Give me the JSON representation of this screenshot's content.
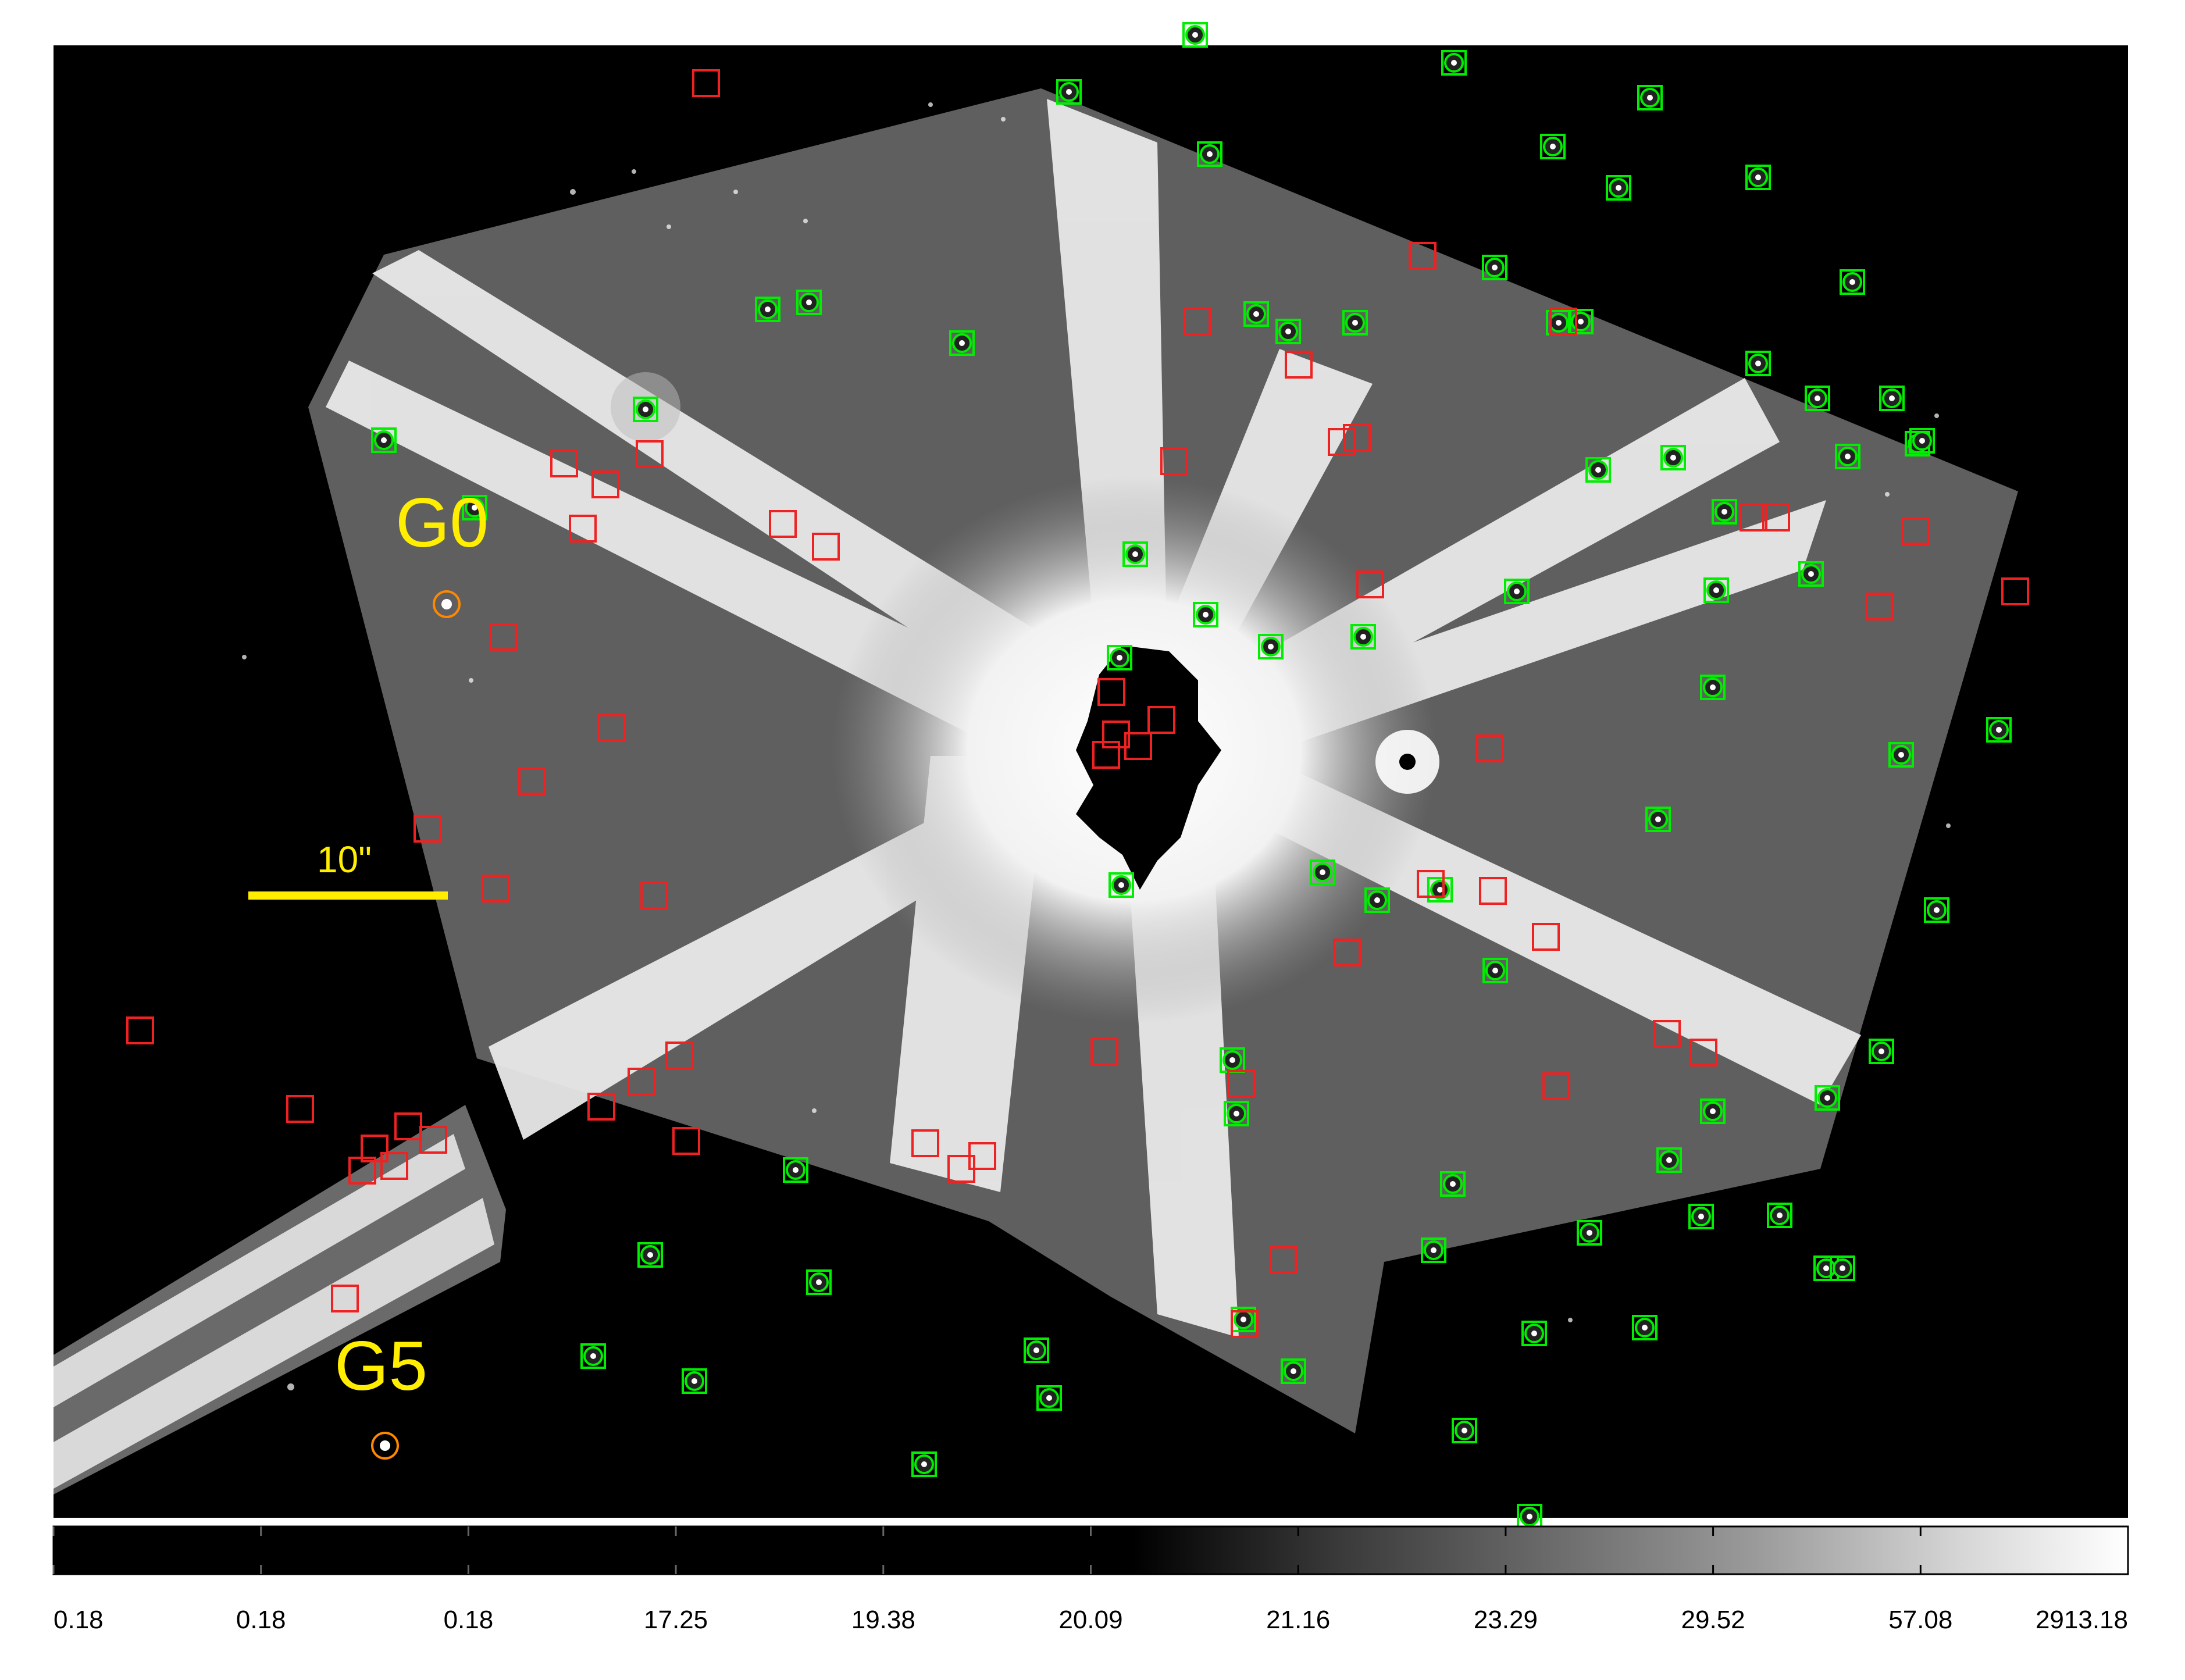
{
  "image": {
    "labels": [
      "G0",
      "G5"
    ],
    "scalebar_label": "10\"",
    "colors": {
      "background": "#000000",
      "annotation_yellow": "#ffee00",
      "marker_green": "#00ee00",
      "marker_red": "#ee2222",
      "marker_orange": "#ff8800"
    }
  },
  "colorbar": {
    "tick_labels": [
      "0.18",
      "0.18",
      "0.18",
      "17.25",
      "19.38",
      "20.09",
      "21.16",
      "23.29",
      "29.52",
      "57.08",
      "2913.18"
    ]
  },
  "markers": {
    "green_circle_count": 66,
    "red_square_count": 62,
    "highlighted_sources": [
      "G0",
      "G5"
    ]
  }
}
